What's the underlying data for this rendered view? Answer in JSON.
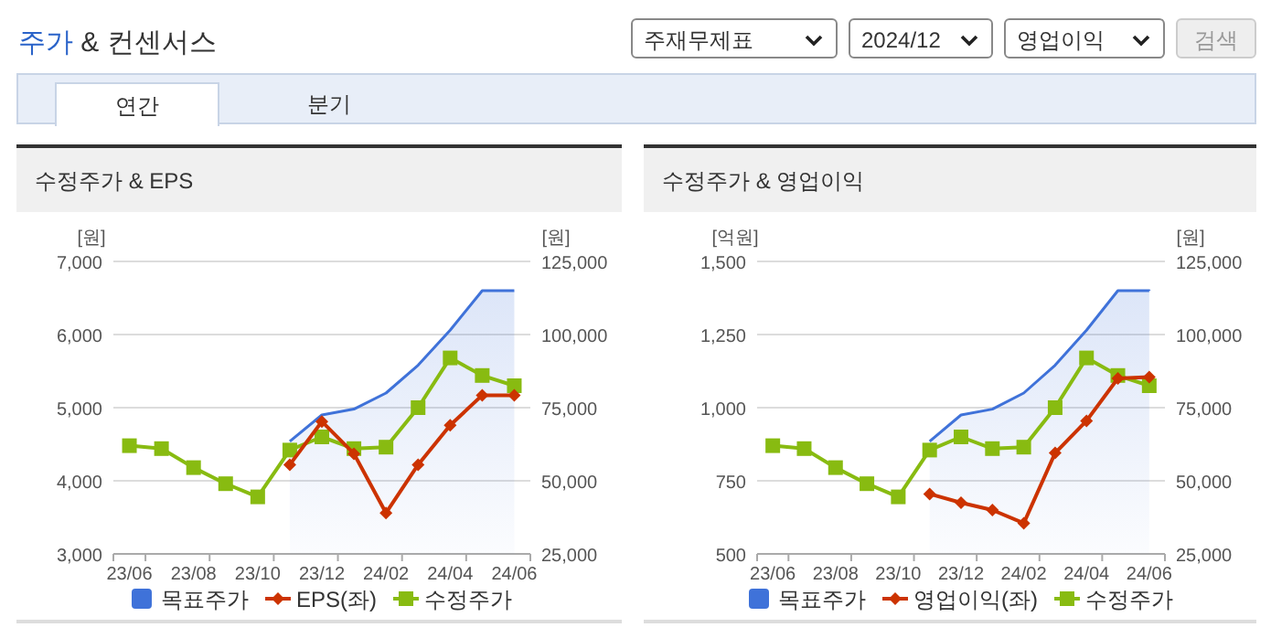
{
  "chart_data": [
    {
      "type": "other",
      "title": "주가 & 컨센서스",
      "annotations": [
        "주재무제표",
        "2024/12",
        "영업이익",
        "검색",
        "연간",
        "분기"
      ]
    },
    {
      "type": "line",
      "title": "수정주가 & EPS",
      "ylabel": "[원]",
      "y2label": "[원]",
      "categories": [
        "23/06",
        null,
        "23/08",
        null,
        "23/10",
        null,
        "23/12",
        null,
        "24/02",
        null,
        "24/04",
        null,
        "24/06"
      ],
      "series": [
        {
          "name": "목표주가",
          "type": "area",
          "axis": "y2",
          "color": "#3f72d9",
          "values": [
            null,
            null,
            null,
            null,
            null,
            63500,
            72500,
            74500,
            80000,
            89500,
            101500,
            115000,
            115000
          ]
        },
        {
          "name": "EPS(좌)",
          "type": "line",
          "axis": "y",
          "marker": "diamond",
          "color": "#cc3300",
          "values": [
            null,
            null,
            null,
            null,
            null,
            4220,
            4810,
            4370,
            3560,
            4220,
            4760,
            5170,
            5170
          ]
        },
        {
          "name": "수정주가",
          "type": "line",
          "axis": "y2",
          "marker": "square",
          "color": "#88bb11",
          "values": [
            62000,
            61000,
            54500,
            49000,
            44500,
            60500,
            65000,
            61000,
            61500,
            75000,
            92000,
            86000,
            82500
          ]
        }
      ],
      "ylim": [
        3000,
        7000
      ],
      "yticks": [
        {
          "value": 3000,
          "label": "3,000"
        },
        {
          "value": 4000,
          "label": "4,000"
        },
        {
          "value": 5000,
          "label": "5,000"
        },
        {
          "value": 6000,
          "label": "6,000"
        },
        {
          "value": 7000,
          "label": "7,000"
        }
      ],
      "y2lim": [
        25000,
        125000
      ],
      "y2ticks": [
        {
          "value": 25000,
          "label": "25,000"
        },
        {
          "value": 50000,
          "label": "50,000"
        },
        {
          "value": 75000,
          "label": "75,000"
        },
        {
          "value": 100000,
          "label": "100,000"
        },
        {
          "value": 125000,
          "label": "125,000"
        }
      ],
      "grid": "y",
      "legend": "bottom"
    },
    {
      "type": "line",
      "title": "수정주가 & 영업이익",
      "ylabel": "[억원]",
      "y2label": "[원]",
      "categories": [
        "23/06",
        null,
        "23/08",
        null,
        "23/10",
        null,
        "23/12",
        null,
        "24/02",
        null,
        "24/04",
        null,
        "24/06"
      ],
      "series": [
        {
          "name": "목표주가",
          "type": "area",
          "axis": "y2",
          "color": "#3f72d9",
          "values": [
            null,
            null,
            null,
            null,
            null,
            63500,
            72500,
            74500,
            80000,
            89500,
            101500,
            115000,
            115000
          ]
        },
        {
          "name": "영업이익(좌)",
          "type": "line",
          "axis": "y",
          "marker": "diamond",
          "color": "#cc3300",
          "values": [
            null,
            null,
            null,
            null,
            null,
            705,
            675,
            650,
            605,
            845,
            955,
            1100,
            1105
          ]
        },
        {
          "name": "수정주가",
          "type": "line",
          "axis": "y2",
          "marker": "square",
          "color": "#88bb11",
          "values": [
            62000,
            61000,
            54500,
            49000,
            44500,
            60500,
            65000,
            61000,
            61500,
            75000,
            92000,
            86000,
            82500
          ]
        }
      ],
      "ylim": [
        500,
        1500
      ],
      "yticks": [
        {
          "value": 500,
          "label": "500"
        },
        {
          "value": 750,
          "label": "750"
        },
        {
          "value": 1000,
          "label": "1,000"
        },
        {
          "value": 1250,
          "label": "1,250"
        },
        {
          "value": 1500,
          "label": "1,500"
        }
      ],
      "y2lim": [
        25000,
        125000
      ],
      "y2ticks": [
        {
          "value": 25000,
          "label": "25,000"
        },
        {
          "value": 50000,
          "label": "50,000"
        },
        {
          "value": 75000,
          "label": "75,000"
        },
        {
          "value": 100000,
          "label": "100,000"
        },
        {
          "value": 125000,
          "label": "125,000"
        }
      ],
      "grid": "y",
      "legend": "bottom"
    }
  ]
}
